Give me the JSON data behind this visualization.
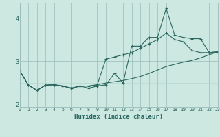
{
  "xlabel": "Humidex (Indice chaleur)",
  "bg_color": "#cce8e0",
  "grid_color_minor": "#b0d4cc",
  "grid_color_major": "#99bbbb",
  "line_color": "#2a6660",
  "x": [
    0,
    1,
    2,
    3,
    4,
    5,
    6,
    7,
    8,
    9,
    10,
    11,
    12,
    13,
    14,
    15,
    16,
    17,
    18,
    19,
    20,
    21,
    22,
    23
  ],
  "line1": [
    2.78,
    2.45,
    2.33,
    2.45,
    2.46,
    2.43,
    2.38,
    2.43,
    2.38,
    2.43,
    2.46,
    2.72,
    2.5,
    3.35,
    3.35,
    3.55,
    3.55,
    4.22,
    3.6,
    3.55,
    3.52,
    3.52,
    3.2,
    3.22
  ],
  "line2": [
    2.78,
    2.45,
    2.33,
    2.45,
    2.46,
    2.43,
    2.38,
    2.43,
    2.43,
    2.46,
    3.05,
    3.1,
    3.15,
    3.2,
    3.3,
    3.4,
    3.5,
    3.65,
    3.5,
    3.45,
    3.25,
    3.2,
    3.2,
    3.22
  ],
  "line3": [
    2.78,
    2.45,
    2.33,
    2.45,
    2.46,
    2.43,
    2.38,
    2.43,
    2.43,
    2.46,
    2.5,
    2.53,
    2.56,
    2.6,
    2.65,
    2.72,
    2.8,
    2.88,
    2.93,
    2.98,
    3.02,
    3.08,
    3.15,
    3.22
  ],
  "ylim": [
    1.95,
    4.35
  ],
  "yticks": [
    2,
    3,
    4
  ],
  "xlim": [
    0,
    23
  ]
}
